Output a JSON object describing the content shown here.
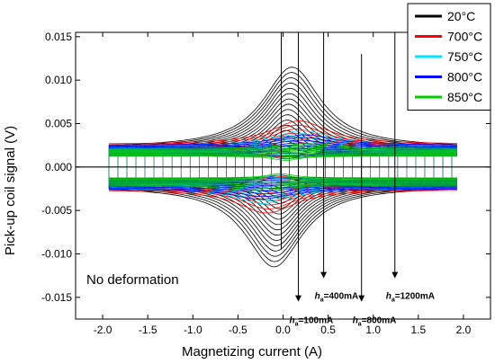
{
  "chart_data": {
    "type": "line",
    "xlabel": "Magnetizing current (A)",
    "ylabel": "Pick-up coil signal (V)",
    "xlim": [
      -2.3,
      2.3
    ],
    "ylim": [
      -0.0175,
      0.0155
    ],
    "xticks": [
      -2.0,
      -1.5,
      -1.0,
      -0.5,
      0.0,
      0.5,
      1.0,
      1.5,
      2.0
    ],
    "xtick_labels": [
      "-2.0",
      "-1.5",
      "-1.0",
      "-0.5",
      "0.0",
      "0.5",
      "1.0",
      "1.5",
      "2.0"
    ],
    "yticks": [
      -0.015,
      -0.01,
      -0.005,
      0.0,
      0.005,
      0.01,
      0.015
    ],
    "ytick_labels": [
      "-0.015",
      "-0.010",
      "-0.005",
      "0.000",
      "0.005",
      "0.010",
      "0.015"
    ],
    "grid": false,
    "legend_position": "top-right",
    "series": [
      {
        "name": "20°C",
        "color": "#000000",
        "peak": 0.0115,
        "peak_x": 0.1,
        "base": 0.0022,
        "loops": 18
      },
      {
        "name": "700°C",
        "color": "#ff0000",
        "peak": 0.0053,
        "peak_x": 0.18,
        "base": 0.0026,
        "loops": 10
      },
      {
        "name": "750°C",
        "color": "#00e5ff",
        "peak": 0.0042,
        "peak_x": 0.22,
        "base": 0.0024,
        "loops": 10
      },
      {
        "name": "800°C",
        "color": "#0000ff",
        "peak": 0.0037,
        "peak_x": 0.25,
        "base": 0.0025,
        "loops": 10
      },
      {
        "name": "850°C",
        "color": "#00cc00",
        "peak": 0.0027,
        "peak_x": 0.3,
        "base": 0.0021,
        "loops": 10
      }
    ],
    "annotations": [
      {
        "text_italic": "h",
        "text_sub": "a",
        "text_rest": "=100mA",
        "x": 0.17,
        "y": -0.0165
      },
      {
        "text_italic": "h",
        "text_sub": "a",
        "text_rest": "=400mA",
        "x": 0.45,
        "y": -0.0137
      },
      {
        "text_italic": "h",
        "text_sub": "a",
        "text_rest": "=800mA",
        "x": 0.87,
        "y": -0.0165
      },
      {
        "text_italic": "h",
        "text_sub": "a",
        "text_rest": "=1200mA",
        "x": 1.24,
        "y": -0.0137
      }
    ],
    "arrows": [
      {
        "x": 0.17,
        "y_from": 0.0155,
        "y_to": -0.0155
      },
      {
        "x": 0.45,
        "y_from": 0.0155,
        "y_to": -0.0128
      },
      {
        "x": 0.87,
        "y_from": 0.013,
        "y_to": -0.0155
      },
      {
        "x": 1.24,
        "y_from": 0.0155,
        "y_to": -0.0128
      }
    ],
    "note": "No deformation"
  }
}
